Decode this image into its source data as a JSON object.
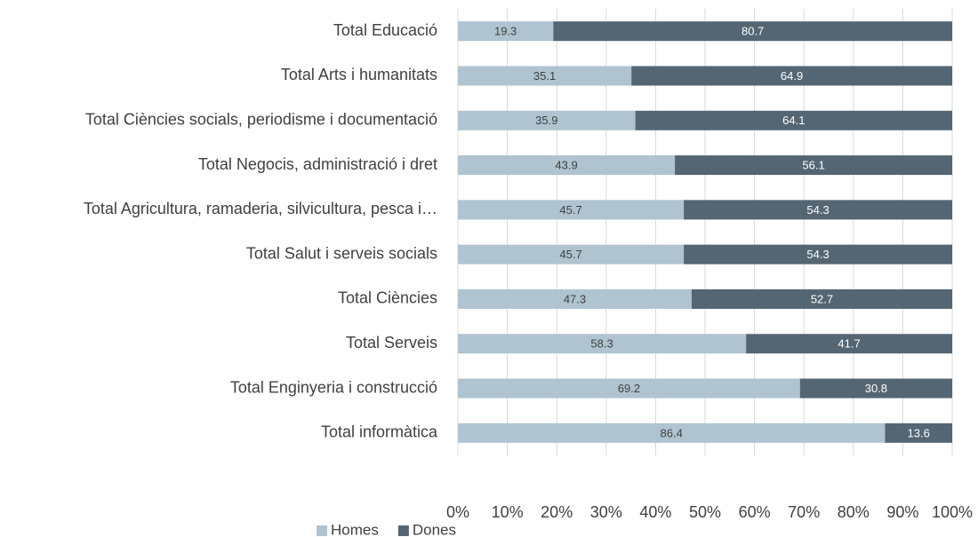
{
  "chart_data": {
    "type": "bar",
    "orientation": "horizontal",
    "stacked": true,
    "categories": [
      "Total Educació",
      "Total Arts i humanitats",
      "Total Ciències socials, periodisme i documentació",
      "Total Negocis, administració i dret",
      "Total Agricultura, ramaderia, silvicultura, pesca i…",
      "Total Salut i serveis socials",
      "Total Ciències",
      "Total Serveis",
      "Total Enginyeria i construcció",
      "Total informàtica"
    ],
    "series": [
      {
        "name": "Homes",
        "color": "#afc4d0",
        "values": [
          19.3,
          35.1,
          35.9,
          43.9,
          45.7,
          45.7,
          47.3,
          58.3,
          69.2,
          86.4
        ]
      },
      {
        "name": "Dones",
        "color": "#546673",
        "values": [
          80.7,
          64.9,
          64.1,
          56.1,
          54.3,
          54.3,
          52.7,
          41.7,
          30.8,
          13.6
        ]
      }
    ],
    "xlim": [
      0,
      100
    ],
    "xticks": [
      {
        "value": 0,
        "label": "0%"
      },
      {
        "value": 10,
        "label": "10%"
      },
      {
        "value": 20,
        "label": "20%"
      },
      {
        "value": 30,
        "label": "30%"
      },
      {
        "value": 40,
        "label": "40%"
      },
      {
        "value": 50,
        "label": "50%"
      },
      {
        "value": 60,
        "label": "60%"
      },
      {
        "value": 70,
        "label": "70%"
      },
      {
        "value": 80,
        "label": "80%"
      },
      {
        "value": 90,
        "label": "90%"
      },
      {
        "value": 100,
        "label": "100%"
      }
    ],
    "grid": true,
    "legend": "bottom"
  }
}
